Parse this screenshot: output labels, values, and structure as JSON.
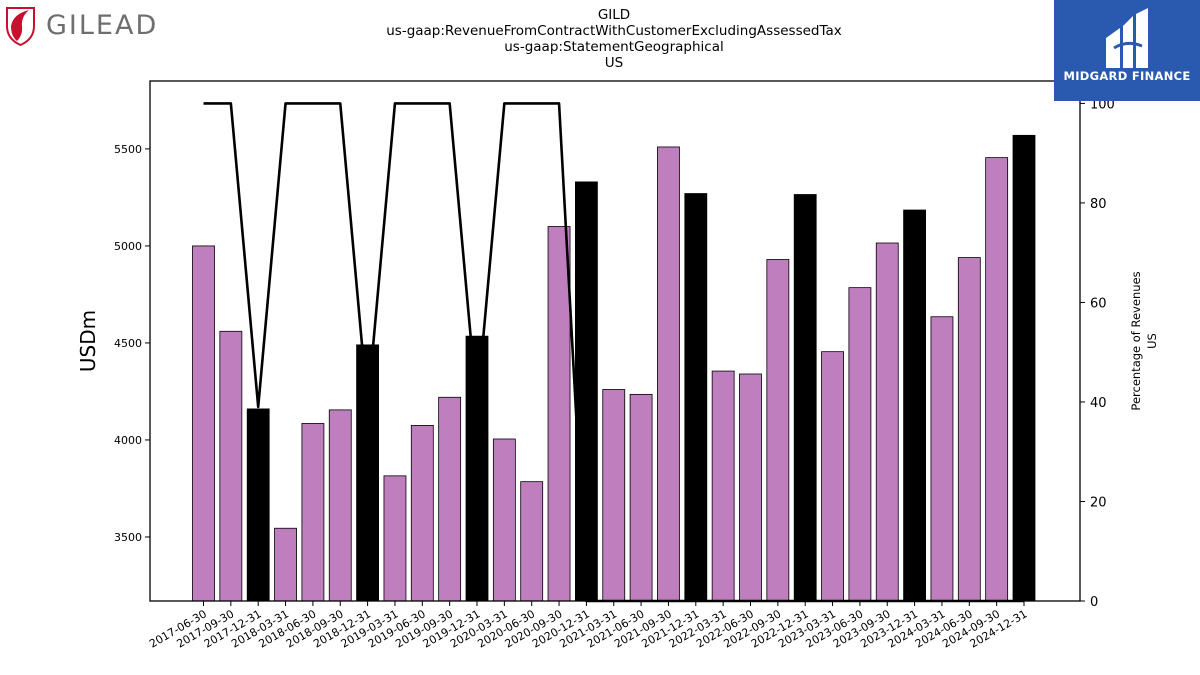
{
  "branding": {
    "left_logo_text": "GILEAD",
    "right_logo_text": "MIDGARD FINANCE"
  },
  "chart_data": {
    "type": "bar",
    "title_lines": [
      "GILD",
      "us-gaap:RevenueFromContractWithCustomerExcludingAssessedTax",
      "us-gaap:StatementGeographical",
      "US"
    ],
    "ylabel": "USDm",
    "y2label_lines": [
      "Percentage of Revenues",
      "US"
    ],
    "ylim": [
      3170,
      5850
    ],
    "y2lim": [
      0,
      104.5
    ],
    "yticks": [
      3500,
      4000,
      4500,
      5000,
      5500
    ],
    "y2ticks": [
      0,
      20,
      40,
      60,
      80,
      100
    ],
    "colors": {
      "quarter": "#bf7fbf",
      "annual": "#000000",
      "line": "#000000"
    },
    "categories": [
      "2017-06-30",
      "2017-09-30",
      "2017-12-31",
      "2018-03-31",
      "2018-06-30",
      "2018-09-30",
      "2018-12-31",
      "2019-03-31",
      "2019-06-30",
      "2019-09-30",
      "2019-12-31",
      "2020-03-31",
      "2020-06-30",
      "2020-09-30",
      "2020-12-31",
      "2021-03-31",
      "2021-06-30",
      "2021-09-30",
      "2021-12-31",
      "2022-03-31",
      "2022-06-30",
      "2022-09-30",
      "2022-12-31",
      "2023-03-31",
      "2023-06-30",
      "2023-09-30",
      "2023-12-31",
      "2024-03-31",
      "2024-06-30",
      "2024-09-30",
      "2024-12-31"
    ],
    "series": [
      {
        "kind": "bar",
        "values": [
          5000,
          4560,
          4160,
          3545,
          4085,
          4155,
          4490,
          3815,
          4075,
          4220,
          4535,
          4005,
          3785,
          5100,
          5330,
          4260,
          4235,
          5510,
          5270,
          4355,
          4340,
          4930,
          5265,
          4455,
          4785,
          5015,
          5185,
          4635,
          4940,
          5455,
          5570
        ],
        "annual_flags": [
          false,
          false,
          true,
          false,
          false,
          false,
          true,
          false,
          false,
          false,
          true,
          false,
          false,
          false,
          true,
          false,
          false,
          false,
          true,
          false,
          false,
          false,
          true,
          false,
          false,
          false,
          true,
          false,
          false,
          false,
          true
        ]
      },
      {
        "kind": "line",
        "axis": "right",
        "values": [
          100,
          100,
          39,
          100,
          100,
          100,
          39,
          100,
          100,
          100,
          39,
          100,
          100,
          100,
          0,
          0,
          0,
          0,
          0,
          0,
          0,
          0,
          0,
          0,
          0,
          0,
          0,
          0,
          0,
          0,
          0
        ]
      }
    ]
  }
}
